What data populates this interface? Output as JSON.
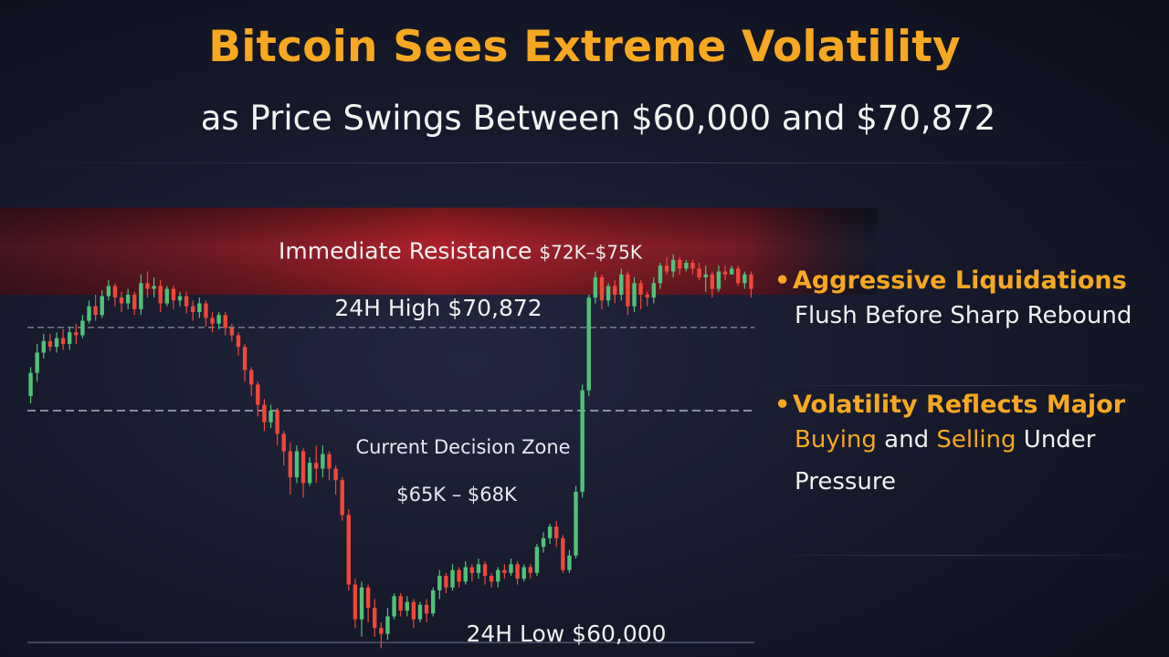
{
  "header": {
    "title": "Bitcoin Sees Extreme Volatility",
    "subtitle": "as Price Swings Between $60,000 and $70,872"
  },
  "colors": {
    "accent": "#f6a821",
    "bull": "#4fc27a",
    "bear": "#f0473a",
    "resistance_band": "#b8222b"
  },
  "chart_data": {
    "type": "candlestick",
    "annotations": {
      "resistance": {
        "label": "Immediate Resistance",
        "range_label": "$72K–$75K",
        "low": 72000,
        "high": 75000
      },
      "high": {
        "label": "24H High $70,872",
        "value": 70872
      },
      "low": {
        "label": "24H Low $60,000",
        "value": 60000
      },
      "decision_zone": {
        "label": "Current Decision Zone",
        "range_label": "$65K – $68K",
        "low": 65000,
        "high": 68000
      }
    },
    "ylim": [
      59500,
      76500
    ],
    "candles": [
      [
        68500,
        69300,
        68250,
        69500
      ],
      [
        69300,
        70000,
        69000,
        70300
      ],
      [
        70000,
        70400,
        69800,
        70650
      ],
      [
        70400,
        70200,
        70050,
        70650
      ],
      [
        70200,
        70500,
        70000,
        70700
      ],
      [
        70500,
        70300,
        70100,
        70800
      ],
      [
        70300,
        70700,
        70100,
        70900
      ],
      [
        70700,
        70600,
        70300,
        71000
      ],
      [
        70600,
        71100,
        70500,
        71300
      ],
      [
        71100,
        71600,
        71000,
        71800
      ],
      [
        71600,
        71300,
        71100,
        72000
      ],
      [
        71300,
        71950,
        71200,
        72150
      ],
      [
        71950,
        72300,
        71800,
        72500
      ],
      [
        72300,
        71900,
        71600,
        72400
      ],
      [
        71900,
        71700,
        71400,
        72100
      ],
      [
        71700,
        72000,
        71500,
        72200
      ],
      [
        72000,
        71500,
        71300,
        72100
      ],
      [
        71500,
        72400,
        71300,
        72700
      ],
      [
        72400,
        72200,
        71900,
        72800
      ],
      [
        72200,
        72300,
        71900,
        72600
      ],
      [
        72300,
        71700,
        71400,
        72500
      ],
      [
        71700,
        72200,
        71600,
        72300
      ],
      [
        72200,
        71800,
        71500,
        72300
      ],
      [
        71800,
        71950,
        71600,
        72100
      ],
      [
        71950,
        71600,
        71350,
        72100
      ],
      [
        71600,
        71400,
        71100,
        71800
      ],
      [
        71400,
        71700,
        71200,
        71900
      ],
      [
        71700,
        71200,
        70900,
        71800
      ],
      [
        71200,
        71000,
        70700,
        71400
      ],
      [
        71000,
        71300,
        70800,
        71400
      ],
      [
        71300,
        70850,
        70600,
        71400
      ],
      [
        70850,
        70600,
        70400,
        71000
      ],
      [
        70600,
        70200,
        69900,
        70700
      ],
      [
        70200,
        69400,
        69000,
        70300
      ],
      [
        69400,
        68900,
        68500,
        69500
      ],
      [
        68900,
        68200,
        67800,
        69000
      ],
      [
        68200,
        67600,
        67300,
        68400
      ],
      [
        67600,
        68000,
        67400,
        68200
      ],
      [
        68000,
        67200,
        66800,
        68100
      ],
      [
        67200,
        66600,
        66100,
        67300
      ],
      [
        66600,
        65700,
        65100,
        66900
      ],
      [
        65700,
        66600,
        65500,
        66800
      ],
      [
        66600,
        65500,
        65000,
        66700
      ],
      [
        65500,
        66200,
        65400,
        66400
      ],
      [
        66200,
        66000,
        65500,
        66800
      ],
      [
        66000,
        66500,
        65700,
        66800
      ],
      [
        66500,
        66000,
        65600,
        66600
      ],
      [
        66000,
        65600,
        65100,
        66100
      ],
      [
        65600,
        64400,
        64200,
        65700
      ],
      [
        64400,
        62000,
        61800,
        64600
      ],
      [
        62000,
        60800,
        60500,
        62200
      ],
      [
        60800,
        61900,
        60200,
        62100
      ],
      [
        61900,
        61200,
        60700,
        62000
      ],
      [
        61200,
        60500,
        60200,
        61500
      ],
      [
        60500,
        60300,
        59800,
        60700
      ],
      [
        60300,
        60900,
        60100,
        61200
      ],
      [
        60900,
        61600,
        60800,
        61700
      ],
      [
        61600,
        61100,
        60900,
        61700
      ],
      [
        61100,
        61400,
        60900,
        61600
      ],
      [
        61400,
        60800,
        60500,
        61500
      ],
      [
        60800,
        61300,
        60700,
        61400
      ],
      [
        61300,
        61000,
        60700,
        61500
      ],
      [
        61000,
        61800,
        60900,
        61900
      ],
      [
        61800,
        62300,
        61500,
        62500
      ],
      [
        62300,
        61900,
        61700,
        62400
      ],
      [
        61900,
        62500,
        61800,
        62700
      ],
      [
        62500,
        62100,
        61900,
        62600
      ],
      [
        62100,
        62600,
        62000,
        62800
      ],
      [
        62600,
        62400,
        62100,
        62700
      ],
      [
        62400,
        62700,
        62200,
        62900
      ],
      [
        62700,
        62300,
        62000,
        62800
      ],
      [
        62300,
        62100,
        61900,
        62400
      ],
      [
        62100,
        62500,
        61900,
        62600
      ],
      [
        62500,
        62400,
        62200,
        62700
      ],
      [
        62400,
        62700,
        62300,
        62900
      ],
      [
        62700,
        62200,
        62000,
        62800
      ],
      [
        62200,
        62600,
        62100,
        62700
      ],
      [
        62600,
        62400,
        62200,
        62700
      ],
      [
        62400,
        63300,
        62300,
        63400
      ],
      [
        63300,
        63600,
        63100,
        63800
      ],
      [
        63600,
        64000,
        63400,
        64100
      ],
      [
        64000,
        63600,
        63300,
        64200
      ],
      [
        63600,
        62500,
        62400,
        63700
      ],
      [
        62500,
        63000,
        62400,
        63200
      ],
      [
        63000,
        65200,
        62900,
        65400
      ],
      [
        65200,
        68700,
        65000,
        68900
      ],
      [
        68700,
        71900,
        68500,
        72000
      ],
      [
        71900,
        72600,
        71700,
        72800
      ],
      [
        72600,
        71800,
        71500,
        72700
      ],
      [
        71800,
        72300,
        71600,
        72400
      ],
      [
        72300,
        72000,
        71700,
        72500
      ],
      [
        72000,
        72700,
        71800,
        72900
      ],
      [
        72700,
        71600,
        71300,
        72800
      ],
      [
        71600,
        72400,
        71400,
        72600
      ],
      [
        72400,
        72000,
        71500,
        72500
      ],
      [
        72000,
        71900,
        71600,
        72100
      ],
      [
        71900,
        72400,
        71700,
        72600
      ],
      [
        72400,
        73000,
        72200,
        73100
      ],
      [
        73000,
        72800,
        72700,
        73300
      ],
      [
        72800,
        73200,
        72600,
        73400
      ],
      [
        73200,
        72900,
        72700,
        73300
      ],
      [
        72900,
        73100,
        72800,
        73200
      ],
      [
        73100,
        72900,
        72700,
        73200
      ],
      [
        72900,
        72600,
        72500,
        73100
      ],
      [
        72600,
        72700,
        72100,
        73000
      ],
      [
        72700,
        72200,
        71900,
        72800
      ],
      [
        72200,
        72800,
        72100,
        73000
      ],
      [
        72800,
        72700,
        72500,
        73000
      ],
      [
        72700,
        72900,
        72700,
        73000
      ],
      [
        72900,
        72400,
        72300,
        73000
      ],
      [
        72400,
        72700,
        72200,
        72800
      ],
      [
        72700,
        72200,
        71900,
        72800
      ]
    ]
  },
  "bullets": [
    {
      "title": "Aggressive Liquidations",
      "text": "Flush Before Sharp Rebound"
    },
    {
      "title": "Volatility Reflects Major",
      "hl1": "Buying",
      "mid": " and ",
      "hl2": "Selling",
      "rest": " Under",
      "line3": "Pressure"
    }
  ]
}
